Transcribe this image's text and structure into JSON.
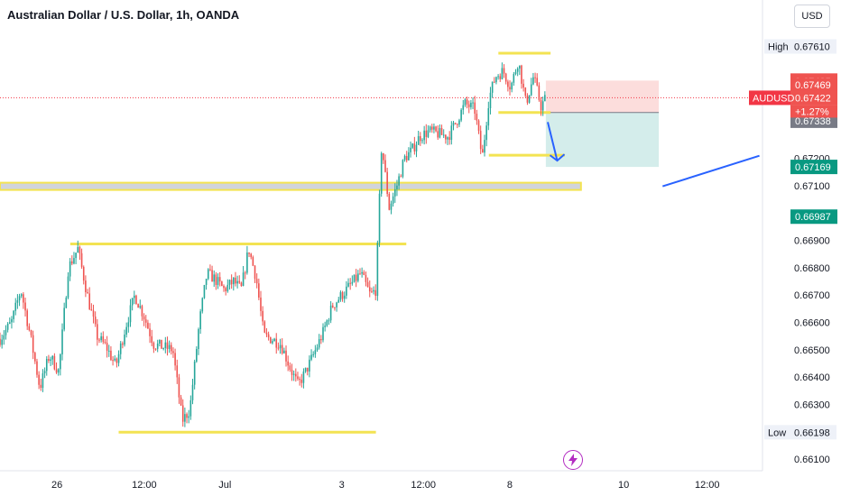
{
  "header": {
    "title": "Australian Dollar / U.S. Dollar, 1h, OANDA",
    "currency": "USD"
  },
  "colors": {
    "up": "#26a69a",
    "down": "#ef5350",
    "level": "#f3e352",
    "arrow": "#2962ff",
    "price_line": "#f23645"
  },
  "icons": {
    "bolt": "bolt-icon"
  },
  "chart_data": {
    "type": "candlestick",
    "symbol": "AUDUSD",
    "change": "+1.27%",
    "ylim": [
      0.6605,
      0.6765
    ],
    "price_ticks": [
      "0.66100",
      "0.66200",
      "0.66300",
      "0.66400",
      "0.66500",
      "0.66600",
      "0.66700",
      "0.66800",
      "0.66900",
      "0.67000",
      "0.67100",
      "0.67200"
    ],
    "time_ticks": [
      {
        "label": "26",
        "t": 60
      },
      {
        "label": "12:00",
        "t": 152
      },
      {
        "label": "Jul",
        "t": 237
      },
      {
        "label": "3",
        "t": 360
      },
      {
        "label": "12:00",
        "t": 446
      },
      {
        "label": "8",
        "t": 537
      },
      {
        "label": "10",
        "t": 657
      },
      {
        "label": "12:00",
        "t": 745
      }
    ],
    "t_range": [
      0,
      790
    ],
    "high": {
      "label": "High",
      "price": "0.67610"
    },
    "low": {
      "label": "Low",
      "price": "0.66198"
    },
    "tags": [
      {
        "price": "0.67485",
        "type": "down"
      },
      {
        "price": "0.67469",
        "type": "down"
      },
      {
        "price": "0.67422",
        "type": "down"
      },
      {
        "price": "0.67368",
        "type": "neutral"
      },
      {
        "price": "0.67338",
        "type": "neutral"
      },
      {
        "price": "0.67169",
        "type": "up"
      },
      {
        "price": "0.66987",
        "type": "up"
      }
    ],
    "current_price": 0.67422,
    "levels": [
      {
        "name": "range-top",
        "t0": 74,
        "t1": 428,
        "price": 0.66887
      },
      {
        "name": "range-bottom",
        "t0": 125,
        "t1": 396,
        "price": 0.66198
      },
      {
        "name": "breakout-zone",
        "t0": 0,
        "t1": 612,
        "price": 0.67098
      },
      {
        "name": "double-top",
        "t0": 525,
        "t1": 580,
        "price": 0.67585
      },
      {
        "name": "neckline",
        "t0": 525,
        "t1": 580,
        "price": 0.67368
      },
      {
        "name": "target",
        "t0": 515,
        "t1": 595,
        "price": 0.67212
      }
    ],
    "position": {
      "t0": 575,
      "t1": 694,
      "stop": 0.67485,
      "entry": 0.67368,
      "target": 0.67169
    },
    "arrows": [
      {
        "name": "drop-arrow",
        "t0": 577,
        "p0": 0.67333,
        "t1": 587,
        "p1": 0.67192
      },
      {
        "name": "trend-line",
        "t0": 698,
        "p0": 0.67098,
        "t1": 800,
        "p1": 0.6721
      }
    ],
    "path": [
      [
        0,
        0.6654
      ],
      [
        12,
        0.666
      ],
      [
        22,
        0.6672
      ],
      [
        32,
        0.6655
      ],
      [
        42,
        0.6636
      ],
      [
        52,
        0.6648
      ],
      [
        62,
        0.6642
      ],
      [
        72,
        0.668
      ],
      [
        82,
        0.6687
      ],
      [
        92,
        0.667
      ],
      [
        102,
        0.6655
      ],
      [
        112,
        0.6651
      ],
      [
        122,
        0.6644
      ],
      [
        132,
        0.6658
      ],
      [
        142,
        0.667
      ],
      [
        152,
        0.6662
      ],
      [
        162,
        0.6652
      ],
      [
        172,
        0.6651
      ],
      [
        182,
        0.665
      ],
      [
        192,
        0.6624
      ],
      [
        200,
        0.6628
      ],
      [
        210,
        0.666
      ],
      [
        218,
        0.6678
      ],
      [
        226,
        0.6676
      ],
      [
        236,
        0.6672
      ],
      [
        246,
        0.6675
      ],
      [
        254,
        0.6672
      ],
      [
        262,
        0.6687
      ],
      [
        270,
        0.6676
      ],
      [
        278,
        0.6655
      ],
      [
        286,
        0.6654
      ],
      [
        296,
        0.6652
      ],
      [
        306,
        0.6643
      ],
      [
        314,
        0.6637
      ],
      [
        322,
        0.6642
      ],
      [
        330,
        0.6648
      ],
      [
        340,
        0.6656
      ],
      [
        350,
        0.6666
      ],
      [
        360,
        0.667
      ],
      [
        370,
        0.6674
      ],
      [
        380,
        0.6678
      ],
      [
        390,
        0.667
      ],
      [
        396,
        0.6672
      ],
      [
        402,
        0.6725
      ],
      [
        410,
        0.6702
      ],
      [
        418,
        0.671
      ],
      [
        426,
        0.672
      ],
      [
        434,
        0.6723
      ],
      [
        442,
        0.6728
      ],
      [
        452,
        0.673
      ],
      [
        462,
        0.6729
      ],
      [
        472,
        0.6728
      ],
      [
        480,
        0.6733
      ],
      [
        490,
        0.674
      ],
      [
        500,
        0.6738
      ],
      [
        508,
        0.672
      ],
      [
        515,
        0.6742
      ],
      [
        522,
        0.675
      ],
      [
        530,
        0.6752
      ],
      [
        538,
        0.6746
      ],
      [
        546,
        0.6756
      ],
      [
        554,
        0.674
      ],
      [
        562,
        0.675
      ],
      [
        570,
        0.6739
      ],
      [
        576,
        0.6743
      ]
    ]
  }
}
